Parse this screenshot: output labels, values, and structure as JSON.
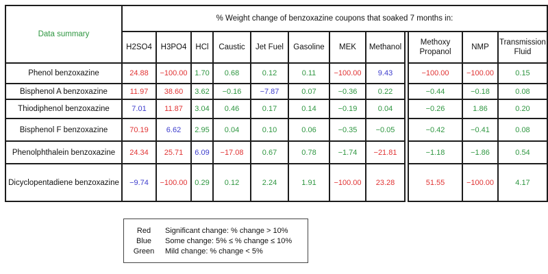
{
  "colors": {
    "red": "#e03232",
    "blue": "#3c3ccc",
    "green": "#2e9640"
  },
  "table": {
    "corner_label": "Data summary",
    "banner": "% Weight change of benzoxazine coupons that soaked 7 months in:",
    "columns": [
      "H2SO4",
      "H3PO4",
      "HCl",
      "Caustic",
      "Jet Fuel",
      "Gasoline",
      "MEK",
      "Methanol",
      "Methoxy Propanol",
      "NMP",
      "Transmission Fluid"
    ],
    "rows": [
      {
        "label": "Phenol benzoxazine",
        "values": [
          {
            "v": "24.88",
            "c": "red"
          },
          {
            "v": "−100.00",
            "c": "red"
          },
          {
            "v": "1.70",
            "c": "green"
          },
          {
            "v": "0.68",
            "c": "green"
          },
          {
            "v": "0.12",
            "c": "green"
          },
          {
            "v": "0.11",
            "c": "green"
          },
          {
            "v": "−100.00",
            "c": "red"
          },
          {
            "v": "9.43",
            "c": "blue"
          },
          {
            "v": "−100.00",
            "c": "red"
          },
          {
            "v": "−100.00",
            "c": "red"
          },
          {
            "v": "0.15",
            "c": "green"
          }
        ]
      },
      {
        "label": "Bisphenol A benzoxazine",
        "values": [
          {
            "v": "11.97",
            "c": "red"
          },
          {
            "v": "38.60",
            "c": "red"
          },
          {
            "v": "3.62",
            "c": "green"
          },
          {
            "v": "−0.16",
            "c": "green"
          },
          {
            "v": "−7.87",
            "c": "blue"
          },
          {
            "v": "0.07",
            "c": "green"
          },
          {
            "v": "−0.36",
            "c": "green"
          },
          {
            "v": "0.22",
            "c": "green"
          },
          {
            "v": "−0.44",
            "c": "green"
          },
          {
            "v": "−0.18",
            "c": "green"
          },
          {
            "v": "0.08",
            "c": "green"
          }
        ]
      },
      {
        "label": "Thiodiphenol benzoxazine",
        "values": [
          {
            "v": "7.01",
            "c": "blue"
          },
          {
            "v": "11.87",
            "c": "red"
          },
          {
            "v": "3.04",
            "c": "green"
          },
          {
            "v": "0.46",
            "c": "green"
          },
          {
            "v": "0.17",
            "c": "green"
          },
          {
            "v": "0.14",
            "c": "green"
          },
          {
            "v": "−0.19",
            "c": "green"
          },
          {
            "v": "0.04",
            "c": "green"
          },
          {
            "v": "−0.26",
            "c": "green"
          },
          {
            "v": "1.86",
            "c": "green"
          },
          {
            "v": "0.20",
            "c": "green"
          }
        ]
      },
      {
        "label": "Bisphenol F benzoxazine",
        "values": [
          {
            "v": "70.19",
            "c": "red"
          },
          {
            "v": "6.62",
            "c": "blue"
          },
          {
            "v": "2.95",
            "c": "green"
          },
          {
            "v": "0.04",
            "c": "green"
          },
          {
            "v": "0.10",
            "c": "green"
          },
          {
            "v": "0.06",
            "c": "green"
          },
          {
            "v": "−0.35",
            "c": "green"
          },
          {
            "v": "−0.05",
            "c": "green"
          },
          {
            "v": "−0.42",
            "c": "green"
          },
          {
            "v": "−0.41",
            "c": "green"
          },
          {
            "v": "0.08",
            "c": "green"
          }
        ]
      },
      {
        "label": "Phenolphthalein benzoxazine",
        "values": [
          {
            "v": "24.34",
            "c": "red"
          },
          {
            "v": "25.71",
            "c": "red"
          },
          {
            "v": "6.09",
            "c": "blue"
          },
          {
            "v": "−17.08",
            "c": "red"
          },
          {
            "v": "0.67",
            "c": "green"
          },
          {
            "v": "0.78",
            "c": "green"
          },
          {
            "v": "−1.74",
            "c": "green"
          },
          {
            "v": "−21.81",
            "c": "red"
          },
          {
            "v": "−1.18",
            "c": "green"
          },
          {
            "v": "−1.86",
            "c": "green"
          },
          {
            "v": "0.54",
            "c": "green"
          }
        ]
      },
      {
        "label": "Dicyclopentadiene benzoxazine",
        "values": [
          {
            "v": "−9.74",
            "c": "blue"
          },
          {
            "v": "−100.00",
            "c": "red"
          },
          {
            "v": "0.29",
            "c": "green"
          },
          {
            "v": "0.12",
            "c": "green"
          },
          {
            "v": "2.24",
            "c": "green"
          },
          {
            "v": "1.91",
            "c": "green"
          },
          {
            "v": "−100.00",
            "c": "red"
          },
          {
            "v": "23.28",
            "c": "red"
          },
          {
            "v": "51.55",
            "c": "red"
          },
          {
            "v": "−100.00",
            "c": "red"
          },
          {
            "v": "4.17",
            "c": "green"
          }
        ]
      }
    ]
  },
  "legend": {
    "items": [
      {
        "label": "Red",
        "desc": "Significant change:  % change > 10%"
      },
      {
        "label": "Blue",
        "desc": "Some change: 5%  ≤ % change ≤ 10%"
      },
      {
        "label": "Green",
        "desc": "Mild change:  % change < 5%"
      }
    ]
  }
}
